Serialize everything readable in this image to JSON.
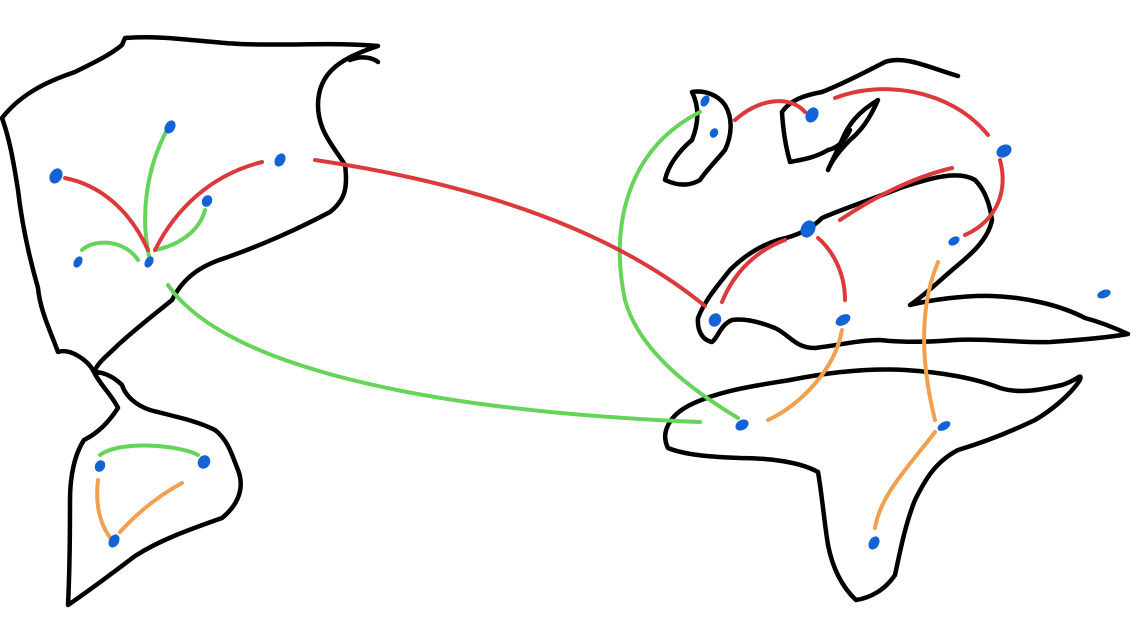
{
  "colors": {
    "background": "#ffffff",
    "coastline": "#000000",
    "city": "#1463d6",
    "route_red": "#dc3a3a",
    "route_green": "#66d45a",
    "route_orange": "#f0a050"
  },
  "landmasses": [
    "north-america",
    "south-america",
    "eurasia",
    "africa"
  ],
  "legend": [],
  "labels": []
}
